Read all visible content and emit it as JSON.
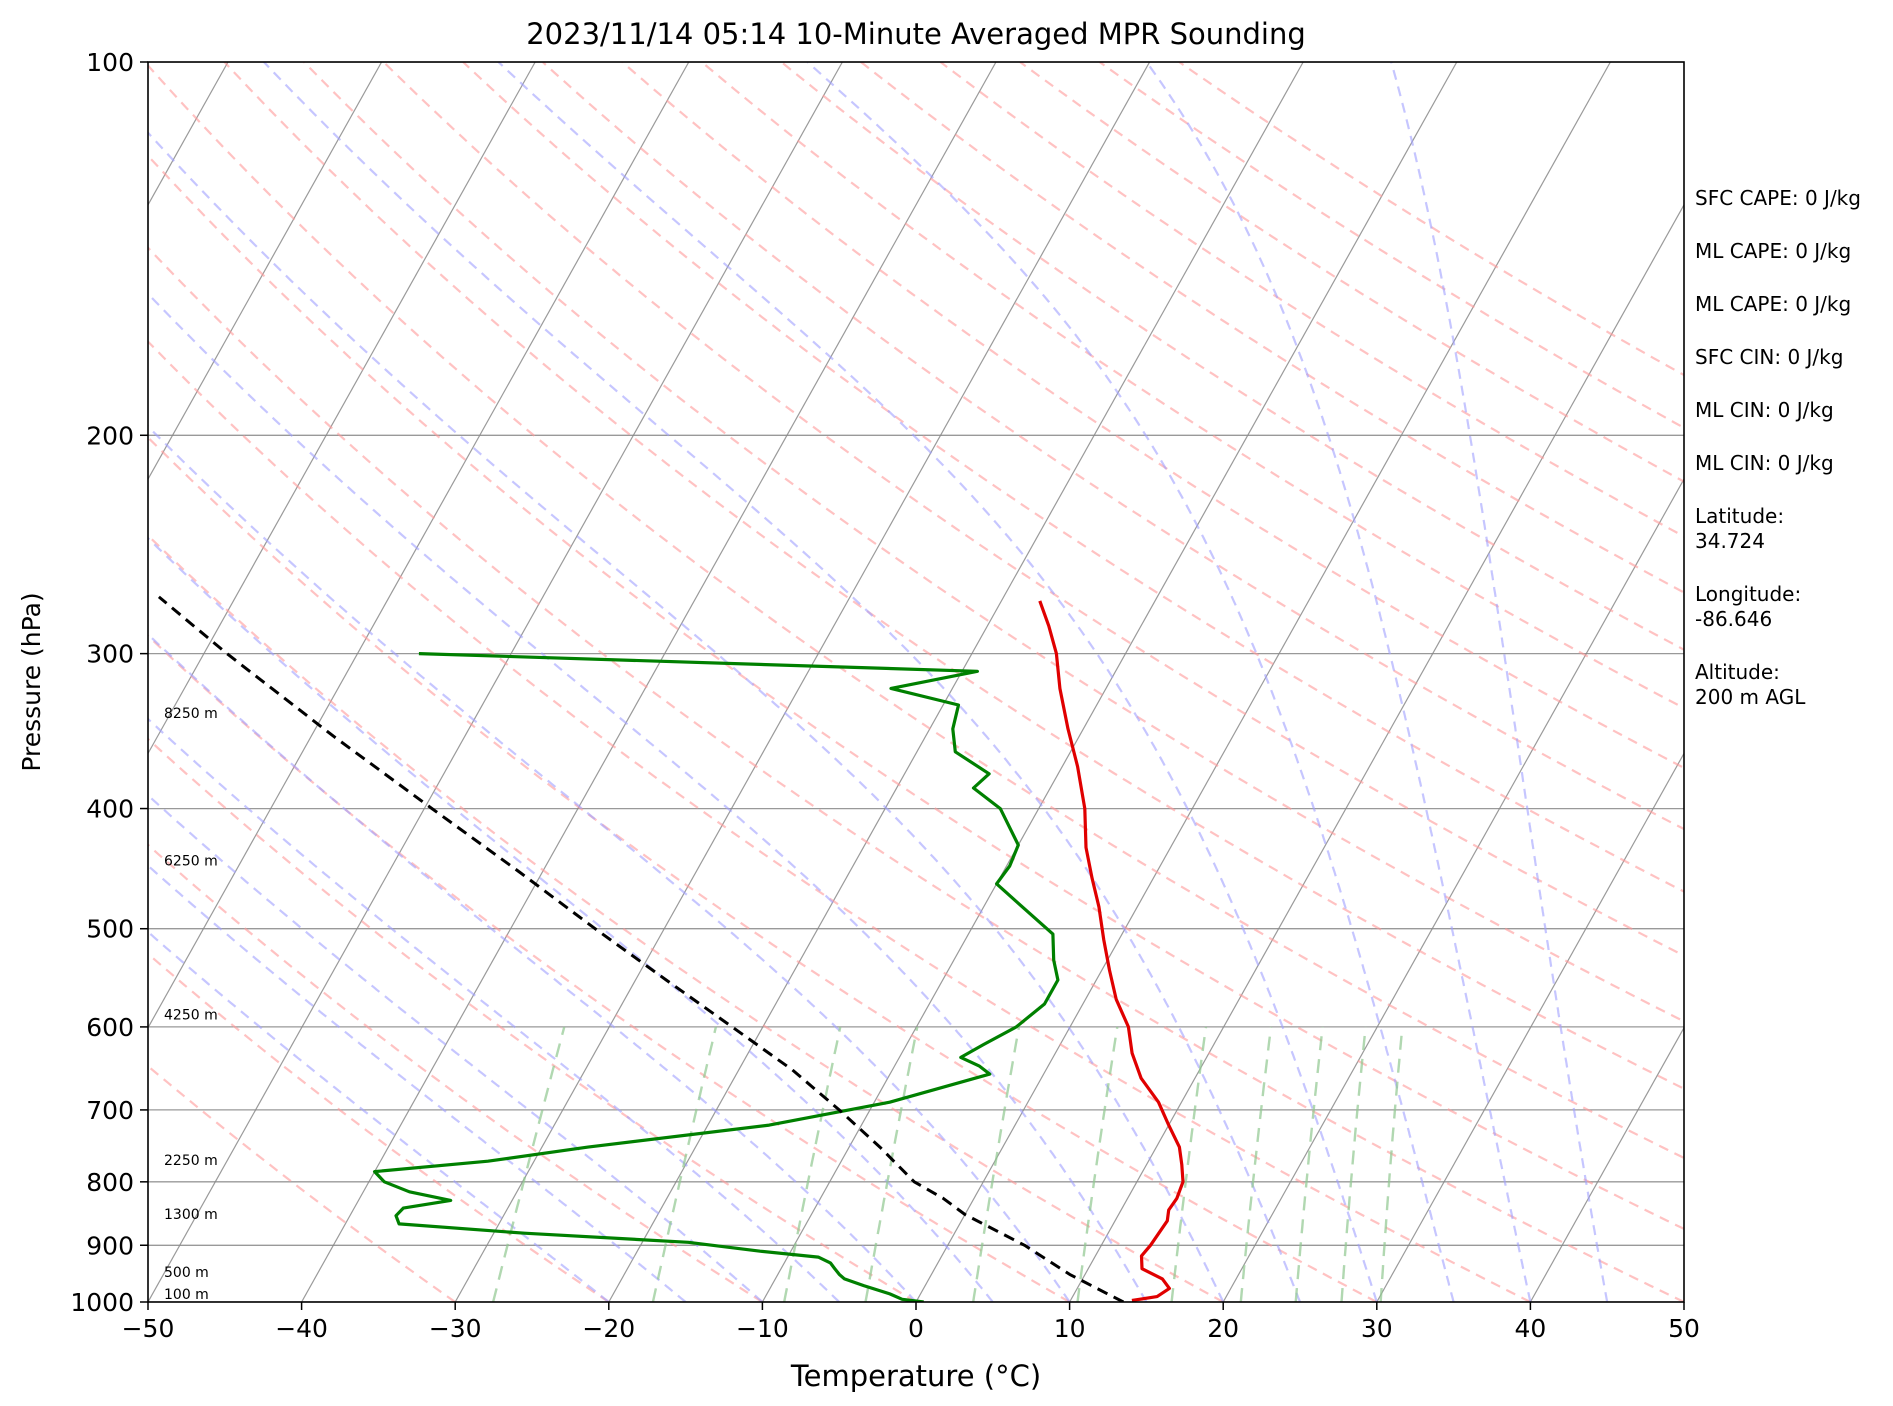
{
  "chart_data": {
    "type": "line",
    "title": "2023/11/14 05:14 10-Minute Averaged MPR Sounding",
    "xlabel": "Temperature (°C)",
    "ylabel": "Pressure (hPa)",
    "xlim": [
      -50,
      50
    ],
    "ylim": [
      1000,
      100
    ],
    "y_scale": "log",
    "x_ticks": [
      -50,
      -40,
      -30,
      -20,
      -10,
      0,
      10,
      20,
      30,
      40,
      50
    ],
    "x_tick_labels": [
      "−50",
      "−40",
      "−30",
      "−20",
      "−10",
      "0",
      "10",
      "20",
      "30",
      "40",
      "50"
    ],
    "y_ticks": [
      1000,
      900,
      800,
      700,
      600,
      500,
      400,
      300,
      200,
      100
    ],
    "y_tick_labels": [
      "1000",
      "900",
      "800",
      "700",
      "600",
      "500",
      "400",
      "300",
      "200",
      "100"
    ],
    "grid": "horizontal lines at pressure ticks; skewed isotherms every 10 °C",
    "background_lines": [
      "dry adiabats (red dashed)",
      "moist adiabats (blue dashed)",
      "mixing ratio lines (green dashed)"
    ],
    "colors": {
      "temperature": "#e00000",
      "dewpoint": "#008000",
      "parcel": "#000000",
      "dry_adiabat": "#ff9a9a",
      "moist_adiabat": "#a0a0ff",
      "mixing_ratio": "#90c890",
      "isotherm": "#888888",
      "isobar": "#999999"
    },
    "series": [
      {
        "key": "temperature",
        "style": "solid",
        "points": [
          [
            997,
            14.0
          ],
          [
            990,
            15.5
          ],
          [
            975,
            16.0
          ],
          [
            958,
            15.2
          ],
          [
            940,
            13.5
          ],
          [
            918,
            13.0
          ],
          [
            900,
            13.2
          ],
          [
            880,
            13.3
          ],
          [
            860,
            13.4
          ],
          [
            843,
            13.1
          ],
          [
            825,
            13.2
          ],
          [
            800,
            13.0
          ],
          [
            775,
            12.3
          ],
          [
            750,
            11.5
          ],
          [
            720,
            10.0
          ],
          [
            690,
            8.5
          ],
          [
            660,
            6.5
          ],
          [
            630,
            5.0
          ],
          [
            600,
            3.8
          ],
          [
            570,
            2.0
          ],
          [
            540,
            0.5
          ],
          [
            510,
            -1.0
          ],
          [
            480,
            -2.5
          ],
          [
            455,
            -4.0
          ],
          [
            430,
            -5.5
          ],
          [
            400,
            -7.0
          ],
          [
            370,
            -9.0
          ],
          [
            345,
            -11.0
          ],
          [
            320,
            -13.0
          ],
          [
            300,
            -14.5
          ],
          [
            285,
            -16.0
          ],
          [
            272,
            -17.5
          ]
        ]
      },
      {
        "key": "dewpoint",
        "style": "solid",
        "points": [
          [
            1000,
            0.5
          ],
          [
            995,
            -1.0
          ],
          [
            985,
            -2.0
          ],
          [
            970,
            -4.0
          ],
          [
            958,
            -5.5
          ],
          [
            950,
            -6.0
          ],
          [
            940,
            -6.5
          ],
          [
            930,
            -7.0
          ],
          [
            920,
            -8.0
          ],
          [
            910,
            -12.0
          ],
          [
            895,
            -17.0
          ],
          [
            880,
            -28.0
          ],
          [
            865,
            -36.5
          ],
          [
            852,
            -37.0
          ],
          [
            840,
            -36.8
          ],
          [
            828,
            -34.0
          ],
          [
            815,
            -37.0
          ],
          [
            800,
            -39.0
          ],
          [
            785,
            -40.0
          ],
          [
            770,
            -33.0
          ],
          [
            750,
            -27.0
          ],
          [
            720,
            -16.0
          ],
          [
            690,
            -9.0
          ],
          [
            655,
            -3.5
          ],
          [
            645,
            -4.5
          ],
          [
            635,
            -6.0
          ],
          [
            620,
            -5.0
          ],
          [
            600,
            -3.5
          ],
          [
            575,
            -2.5
          ],
          [
            550,
            -2.5
          ],
          [
            530,
            -3.5
          ],
          [
            505,
            -4.5
          ],
          [
            480,
            -7.5
          ],
          [
            460,
            -10.0
          ],
          [
            445,
            -9.8
          ],
          [
            428,
            -10.0
          ],
          [
            400,
            -12.5
          ],
          [
            385,
            -15.0
          ],
          [
            375,
            -14.5
          ],
          [
            360,
            -17.5
          ],
          [
            345,
            -18.5
          ],
          [
            330,
            -19.0
          ],
          [
            320,
            -24.0
          ],
          [
            310,
            -19.0
          ],
          [
            300,
            -56.0
          ]
        ]
      },
      {
        "key": "parcel",
        "style": "dashed",
        "points": [
          [
            1000,
            13.5
          ],
          [
            950,
            9.0
          ],
          [
            900,
            5.0
          ],
          [
            850,
            0.0
          ],
          [
            825,
            -2.0
          ],
          [
            800,
            -4.5
          ],
          [
            750,
            -8.0
          ],
          [
            700,
            -12.0
          ],
          [
            650,
            -16.5
          ],
          [
            600,
            -22.0
          ],
          [
            550,
            -28.0
          ],
          [
            500,
            -34.5
          ],
          [
            450,
            -41.5
          ],
          [
            400,
            -49.5
          ],
          [
            350,
            -58.5
          ],
          [
            300,
            -68.5
          ],
          [
            270,
            -75.0
          ]
        ]
      }
    ],
    "height_labels": [
      {
        "pressure": 1000,
        "label": "100 m"
      },
      {
        "pressure": 960,
        "label": "500 m"
      },
      {
        "pressure": 862,
        "label": "1300 m"
      },
      {
        "pressure": 780,
        "label": "2250 m"
      },
      {
        "pressure": 595,
        "label": "4250 m"
      },
      {
        "pressure": 447,
        "label": "6250 m"
      },
      {
        "pressure": 340,
        "label": "8250 m"
      }
    ]
  },
  "stats": [
    "SFC CAPE: 0 J/kg",
    "ML CAPE: 0 J/kg",
    "ML CAPE: 0 J/kg",
    "SFC CIN: 0 J/kg",
    "ML CIN: 0 J/kg",
    "ML CIN: 0 J/kg",
    "Latitude:\n34.724",
    "Longitude:\n-86.646",
    "Altitude:\n200 m AGL"
  ]
}
